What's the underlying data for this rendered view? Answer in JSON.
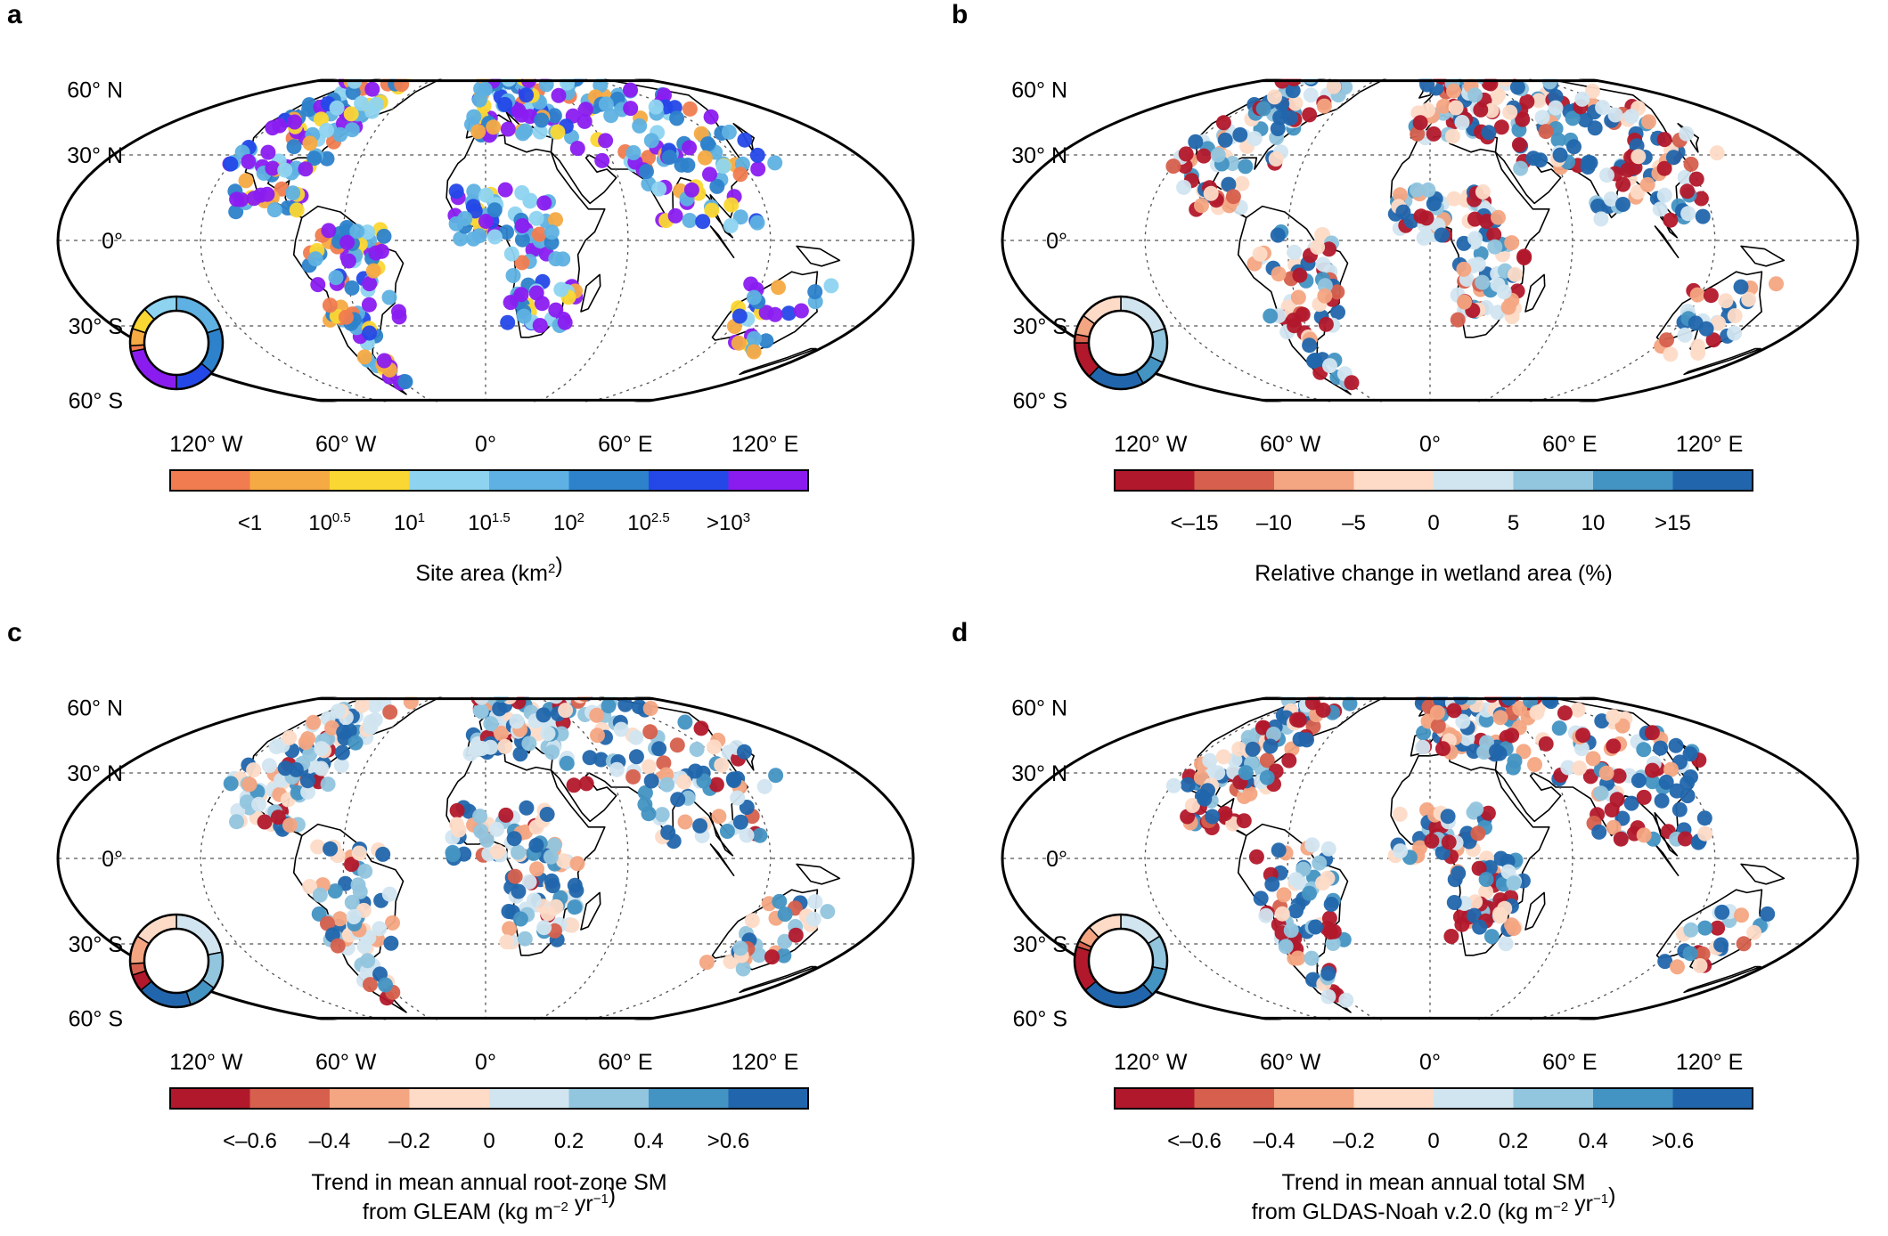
{
  "latitude_labels": [
    "60° N",
    "30° N",
    "0°",
    "30° S",
    "60° S"
  ],
  "longitude_labels": [
    "120° W",
    "60° W",
    "0°",
    "60° E",
    "120° E"
  ],
  "panels": [
    {
      "id": "a",
      "label": "a",
      "title_lines": [
        "Site area (km²)"
      ],
      "title_parts": [
        [
          {
            "t": "Site area (km"
          },
          {
            "t": "2",
            "sup": true
          },
          {
            "t": ")"
          }
        ]
      ],
      "colors": [
        "#f07c4f",
        "#f6aa43",
        "#fbd733",
        "#8ed4f0",
        "#5eb1e2",
        "#2d82cb",
        "#2448e8",
        "#8a1cf0"
      ],
      "ticks": [
        [
          {
            "t": "<1"
          }
        ],
        [
          {
            "t": "10"
          },
          {
            "t": "0.5",
            "sup": true
          }
        ],
        [
          {
            "t": "10"
          },
          {
            "t": "1",
            "sup": true
          }
        ],
        [
          {
            "t": "10"
          },
          {
            "t": "1.5",
            "sup": true
          }
        ],
        [
          {
            "t": "10"
          },
          {
            "t": "2",
            "sup": true
          }
        ],
        [
          {
            "t": "10"
          },
          {
            "t": "2.5",
            "sup": true
          }
        ],
        [
          {
            "t": ">10"
          },
          {
            "t": "3",
            "sup": true
          }
        ]
      ],
      "tick_text": [
        "<1",
        "10^0.5",
        "10^1",
        "10^1.5",
        "10^2",
        "10^2.5",
        ">10^3"
      ],
      "ring_fractions": [
        0.02,
        0.06,
        0.08,
        0.12,
        0.2,
        0.16,
        0.14,
        0.22
      ],
      "point_weights": [
        2,
        3,
        4,
        4,
        8,
        7,
        3,
        10
      ]
    },
    {
      "id": "b",
      "label": "b",
      "title_lines": [
        "Relative change in wetland area (%)"
      ],
      "title_parts": [
        [
          {
            "t": "Relative change in wetland area (%)"
          }
        ]
      ],
      "colors": [
        "#b2182b",
        "#d6604d",
        "#f4a582",
        "#fddbc7",
        "#d1e5f0",
        "#92c5de",
        "#4393c3",
        "#2166ac"
      ],
      "ticks": [
        [
          {
            "t": "<–15"
          }
        ],
        [
          {
            "t": "–10"
          }
        ],
        [
          {
            "t": "–5"
          }
        ],
        [
          {
            "t": "0"
          }
        ],
        [
          {
            "t": "5"
          }
        ],
        [
          {
            "t": "10"
          }
        ],
        [
          {
            "t": ">15"
          }
        ]
      ],
      "tick_text": [
        "<–15",
        "–10",
        "–5",
        "0",
        "5",
        "10",
        ">15"
      ],
      "ring_fractions": [
        0.13,
        0.03,
        0.07,
        0.15,
        0.2,
        0.12,
        0.1,
        0.2
      ],
      "point_weights": [
        7,
        2,
        4,
        6,
        7,
        4,
        4,
        8
      ]
    },
    {
      "id": "c",
      "label": "c",
      "title_lines": [
        "Trend in mean annual root-zone SM",
        "from GLEAM (kg m⁻² yr⁻¹)"
      ],
      "title_parts": [
        [
          {
            "t": "Trend in mean annual root-zone SM"
          }
        ],
        [
          {
            "t": "from GLEAM (kg m"
          },
          {
            "t": "−2",
            "sup": true
          },
          {
            "t": " yr"
          },
          {
            "t": "−1",
            "sup": true
          },
          {
            "t": ")"
          }
        ]
      ],
      "colors": [
        "#b2182b",
        "#d6604d",
        "#f4a582",
        "#fddbc7",
        "#d1e5f0",
        "#92c5de",
        "#4393c3",
        "#2166ac"
      ],
      "ticks": [
        [
          {
            "t": "<–0.6"
          }
        ],
        [
          {
            "t": "–0.4"
          }
        ],
        [
          {
            "t": "–0.2"
          }
        ],
        [
          {
            "t": "0"
          }
        ],
        [
          {
            "t": "0.2"
          }
        ],
        [
          {
            "t": "0.4"
          }
        ],
        [
          {
            "t": ">0.6"
          }
        ]
      ],
      "tick_text": [
        "<–0.6",
        "–0.4",
        "–0.2",
        "0",
        "0.2",
        "0.4",
        ">0.6"
      ],
      "ring_fractions": [
        0.06,
        0.04,
        0.1,
        0.16,
        0.22,
        0.13,
        0.1,
        0.19
      ],
      "point_weights": [
        3,
        2,
        5,
        6,
        8,
        5,
        4,
        8
      ]
    },
    {
      "id": "d",
      "label": "d",
      "title_lines": [
        "Trend in mean annual total SM",
        "from GLDAS-Noah v.2.0 (kg m⁻² yr⁻¹)"
      ],
      "title_parts": [
        [
          {
            "t": "Trend in mean annual total SM"
          }
        ],
        [
          {
            "t": "from GLDAS-Noah v.2.0 (kg m"
          },
          {
            "t": "−2",
            "sup": true
          },
          {
            "t": " yr"
          },
          {
            "t": "−1",
            "sup": true
          },
          {
            "t": ")"
          }
        ]
      ],
      "colors": [
        "#b2182b",
        "#d6604d",
        "#f4a582",
        "#fddbc7",
        "#d1e5f0",
        "#92c5de",
        "#4393c3",
        "#2166ac"
      ],
      "ticks": [
        [
          {
            "t": "<–0.6"
          }
        ],
        [
          {
            "t": "–0.4"
          }
        ],
        [
          {
            "t": "–0.2"
          }
        ],
        [
          {
            "t": "0"
          }
        ],
        [
          {
            "t": "0.2"
          }
        ],
        [
          {
            "t": "0.4"
          }
        ],
        [
          {
            "t": ">0.6"
          }
        ]
      ],
      "tick_text": [
        "<–0.6",
        "–0.4",
        "–0.2",
        "0",
        "0.2",
        "0.4",
        ">0.6"
      ],
      "ring_fractions": [
        0.16,
        0.02,
        0.06,
        0.12,
        0.16,
        0.12,
        0.1,
        0.26
      ],
      "point_weights": [
        9,
        2,
        4,
        5,
        5,
        4,
        4,
        9
      ]
    }
  ]
}
